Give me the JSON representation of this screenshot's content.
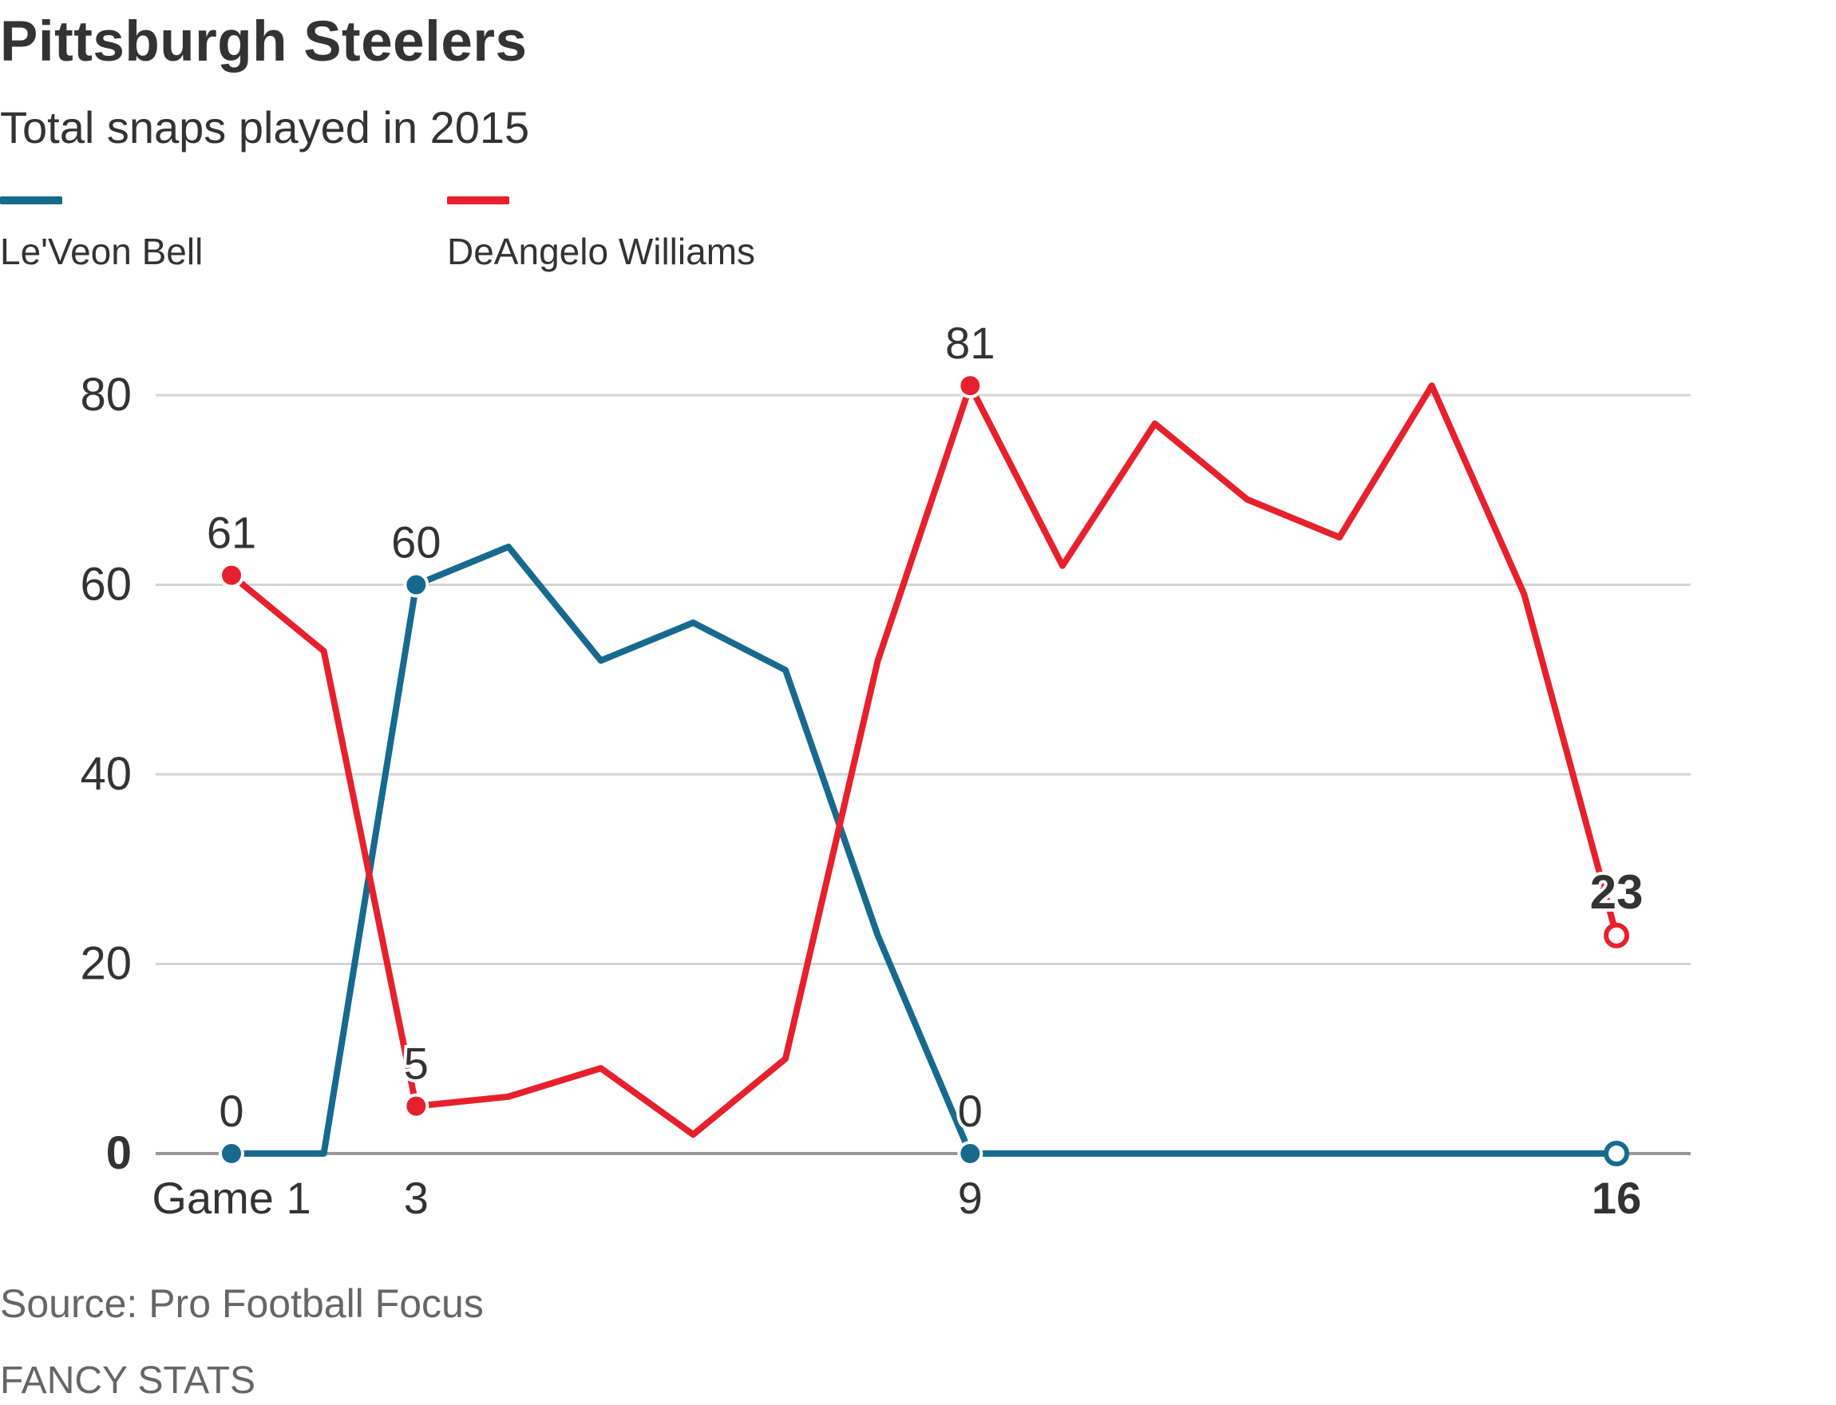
{
  "header": {
    "title": "Pittsburgh Steelers",
    "subtitle": "Total snaps played in 2015"
  },
  "legend": [
    {
      "name": "Le'Veon Bell",
      "color": "#176a8d"
    },
    {
      "name": "DeAngelo Williams",
      "color": "#e6212d"
    }
  ],
  "footer": {
    "source": "Source: Pro Football Focus",
    "credit": "FANCY STATS"
  },
  "chart_data": {
    "type": "line",
    "title": "Pittsburgh Steelers",
    "subtitle": "Total snaps played in 2015",
    "xlabel": "",
    "ylabel": "",
    "x": [
      1,
      2,
      3,
      4,
      5,
      6,
      7,
      8,
      9,
      10,
      11,
      12,
      13,
      14,
      15,
      16
    ],
    "xlim": [
      1,
      16
    ],
    "ylim": [
      0,
      80
    ],
    "grid": true,
    "legend_position": "top-left",
    "x_ticks": [
      {
        "value": 1,
        "label": "Game 1",
        "bold": false
      },
      {
        "value": 3,
        "label": "3",
        "bold": false
      },
      {
        "value": 9,
        "label": "9",
        "bold": false
      },
      {
        "value": 16,
        "label": "16",
        "bold": true
      }
    ],
    "y_ticks": [
      {
        "value": 0,
        "label": "0",
        "bold": true
      },
      {
        "value": 20,
        "label": "20",
        "bold": false
      },
      {
        "value": 40,
        "label": "40",
        "bold": false
      },
      {
        "value": 60,
        "label": "60",
        "bold": false
      },
      {
        "value": 80,
        "label": "80",
        "bold": false
      }
    ],
    "series": [
      {
        "name": "Le'Veon Bell",
        "color": "#176a8d",
        "values": [
          0,
          0,
          60,
          64,
          52,
          56,
          51,
          23,
          0,
          0,
          0,
          0,
          0,
          0,
          0,
          0
        ],
        "labeled_points": [
          {
            "x": 1,
            "y": 0,
            "label": "0",
            "filled": true,
            "bold": false
          },
          {
            "x": 3,
            "y": 60,
            "label": "60",
            "filled": true,
            "bold": false
          },
          {
            "x": 9,
            "y": 0,
            "label": "0",
            "filled": true,
            "bold": false
          },
          {
            "x": 16,
            "y": 0,
            "label": "",
            "filled": false,
            "bold": false
          }
        ]
      },
      {
        "name": "DeAngelo Williams",
        "color": "#e6212d",
        "values": [
          61,
          53,
          5,
          6,
          9,
          2,
          10,
          52,
          81,
          62,
          77,
          69,
          65,
          81,
          59,
          23
        ],
        "labeled_points": [
          {
            "x": 1,
            "y": 61,
            "label": "61",
            "filled": true,
            "bold": false
          },
          {
            "x": 3,
            "y": 5,
            "label": "5",
            "filled": true,
            "bold": false
          },
          {
            "x": 9,
            "y": 81,
            "label": "81",
            "filled": true,
            "bold": false
          },
          {
            "x": 16,
            "y": 23,
            "label": "23",
            "filled": false,
            "bold": true
          }
        ]
      }
    ]
  }
}
